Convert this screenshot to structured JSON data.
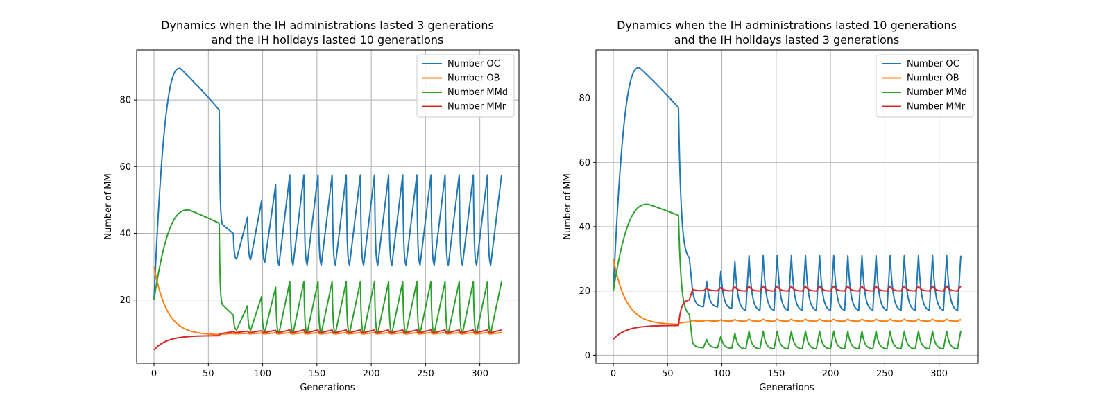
{
  "chart_data": [
    {
      "type": "line",
      "title_lines": [
        "Dynamics when the IH administrations lasted 3 generations",
        "and the IH holidays lasted 10 generations"
      ],
      "xlabel": "Generations",
      "ylabel": "Number of MM",
      "xlim": [
        -16,
        336
      ],
      "ylim": [
        1,
        95
      ],
      "xticks": [
        0,
        50,
        100,
        150,
        200,
        250,
        300
      ],
      "yticks": [
        20,
        40,
        60,
        80
      ],
      "grid": true,
      "legend_position": "top-right",
      "schedule": {
        "start": 60,
        "administration": 3,
        "holiday": 10,
        "end": 320
      },
      "series": [
        {
          "name": "Number OC",
          "color": "#1f77b4",
          "start": 20,
          "peak": 89.5,
          "peak_x": 24,
          "pre": 77,
          "cycle_low": 30.5,
          "cycle_high": 57.5,
          "end": 57.5
        },
        {
          "name": "Number OB",
          "color": "#ff7f0e",
          "start": 30,
          "pre": 9.5,
          "cycle_low": 9.8,
          "cycle_high": 10.2,
          "end": 10
        },
        {
          "name": "Number MMd",
          "color": "#2ca02c",
          "start": 20,
          "peak": 47,
          "peak_x": 32,
          "pre": 43,
          "cycle_low": 10,
          "cycle_high": 25.5,
          "end": 25.5
        },
        {
          "name": "Number MMr",
          "color": "#d62728",
          "start": 5,
          "pre": 9.3,
          "cycle_low": 10.2,
          "cycle_high": 11,
          "end": 11
        }
      ]
    },
    {
      "type": "line",
      "title_lines": [
        "Dynamics when the IH administrations lasted 10 generations",
        "and the IH holidays lasted 3 generations"
      ],
      "xlabel": "Generations",
      "ylabel": "Number of MM",
      "xlim": [
        -16,
        336
      ],
      "ylim": [
        -2.5,
        95
      ],
      "xticks": [
        0,
        50,
        100,
        150,
        200,
        250,
        300
      ],
      "yticks": [
        0,
        20,
        40,
        60,
        80
      ],
      "grid": true,
      "legend_position": "top-right",
      "schedule": {
        "start": 60,
        "administration": 10,
        "holiday": 3,
        "end": 320
      },
      "series": [
        {
          "name": "Number OC",
          "color": "#1f77b4",
          "start": 20,
          "peak": 89.5,
          "peak_x": 24,
          "pre": 77,
          "cycle_low": 14,
          "cycle_high": 31,
          "end": 31
        },
        {
          "name": "Number OB",
          "color": "#ff7f0e",
          "start": 30,
          "pre": 9.5,
          "cycle_low": 10.6,
          "cycle_high": 11.2,
          "end": 10.8
        },
        {
          "name": "Number MMd",
          "color": "#2ca02c",
          "start": 20,
          "peak": 47,
          "peak_x": 32,
          "pre": 43.5,
          "cycle_low": 2,
          "cycle_high": 7.5,
          "end": 7.5
        },
        {
          "name": "Number MMr",
          "color": "#d62728",
          "start": 5,
          "pre": 9.3,
          "cycle_low": 20,
          "cycle_high": 21.5,
          "end": 21.5
        }
      ]
    }
  ]
}
